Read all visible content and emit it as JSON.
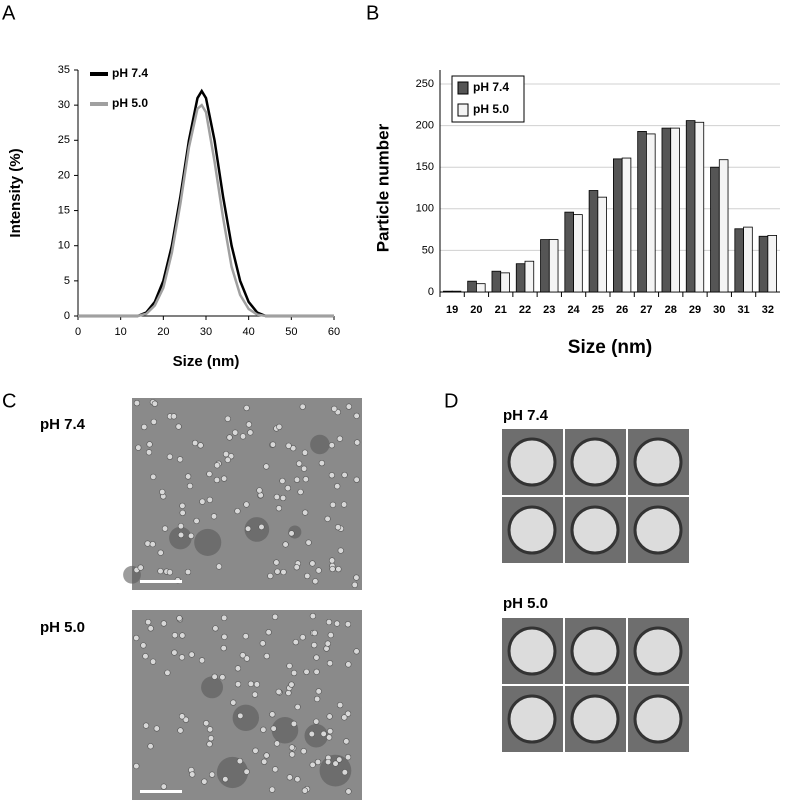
{
  "panels": {
    "a": "A",
    "b": "B",
    "c": "C",
    "d": "D"
  },
  "chart_data": [
    {
      "type": "line",
      "x_label": "Size (nm)",
      "y_label": "Intensity (%)",
      "x": [
        0,
        5,
        10,
        14,
        16,
        18,
        20,
        22,
        24,
        26,
        28,
        29,
        30,
        32,
        34,
        36,
        38,
        40,
        42,
        44,
        46,
        50,
        60
      ],
      "series": [
        {
          "name": "pH 7.4",
          "color": "#000000",
          "values": [
            0,
            0,
            0,
            0,
            0.5,
            2,
            5,
            10,
            17,
            25,
            31,
            32,
            31,
            25,
            17,
            10,
            5,
            2,
            0.5,
            0,
            0,
            0,
            0
          ]
        },
        {
          "name": "pH 5.0",
          "color": "#a0a0a0",
          "values": [
            0,
            0,
            0,
            0,
            0.3,
            1.5,
            4,
            9,
            16,
            24,
            29.5,
            30,
            29,
            22,
            14,
            7,
            3,
            1,
            0.2,
            0,
            0,
            0,
            0
          ]
        }
      ],
      "xlim": [
        0,
        60
      ],
      "xticks": [
        0,
        10,
        20,
        30,
        40,
        50,
        60
      ],
      "ylim": [
        0,
        35
      ],
      "yticks": [
        0,
        5,
        10,
        15,
        20,
        25,
        30,
        35
      ],
      "legend": "upper left",
      "grid": false
    },
    {
      "type": "bar",
      "x_label": "Size (nm)",
      "y_label": "Particle number",
      "categories": [
        "19",
        "20",
        "21",
        "22",
        "23",
        "24",
        "25",
        "26",
        "27",
        "28",
        "29",
        "30",
        "31",
        "32"
      ],
      "series": [
        {
          "name": "pH 7.4",
          "color": "#555555",
          "values": [
            1,
            13,
            25,
            34,
            63,
            96,
            122,
            160,
            193,
            197,
            206,
            150,
            76,
            67
          ]
        },
        {
          "name": "pH 5.0",
          "color": "#f4f4f4",
          "values": [
            1,
            10,
            23,
            37,
            63,
            93,
            114,
            161,
            190,
            197,
            204,
            159,
            78,
            68
          ]
        }
      ],
      "ylim": [
        0,
        250
      ],
      "yticks": [
        0,
        50,
        100,
        150,
        200,
        250
      ],
      "legend": "upper left",
      "grid": true
    }
  ],
  "micrographs": {
    "c_labels": [
      "pH 7.4",
      "pH 5.0"
    ],
    "d_labels": [
      "pH 7.4",
      "pH 5.0"
    ]
  }
}
